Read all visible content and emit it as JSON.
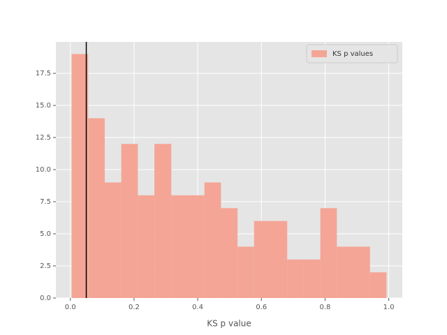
{
  "chart_data": {
    "type": "histogram",
    "xlabel": "KS p value",
    "bins": [
      0.004,
      0.056,
      0.108,
      0.16,
      0.212,
      0.264,
      0.317,
      0.369,
      0.421,
      0.473,
      0.525,
      0.577,
      0.629,
      0.681,
      0.733,
      0.785,
      0.837,
      0.889,
      0.941,
      0.993
    ],
    "series": [
      {
        "name": "KS p values",
        "color": "#f4a596",
        "values": [
          19,
          14,
          9,
          12,
          8,
          12,
          8,
          8,
          9,
          7,
          4,
          6,
          6,
          3,
          3,
          7,
          4,
          4,
          2
        ]
      }
    ],
    "vline": 0.05,
    "xlim": [
      -0.0455,
      1.0425
    ],
    "xticks": [
      {
        "value": 0,
        "label": "0.0"
      },
      0.2,
      0.4,
      0.6,
      0.8,
      {
        "value": 1,
        "label": "1.0"
      }
    ],
    "ylim": [
      0,
      19.95
    ],
    "yticks": [
      {
        "value": 0,
        "label": "0.0"
      },
      2.5,
      {
        "value": 5,
        "label": "5.0"
      },
      7.5,
      {
        "value": 10,
        "label": "10.0"
      },
      12.5,
      {
        "value": 15,
        "label": "15.0"
      },
      17.5
    ],
    "grid": true,
    "legend": "upper right"
  }
}
